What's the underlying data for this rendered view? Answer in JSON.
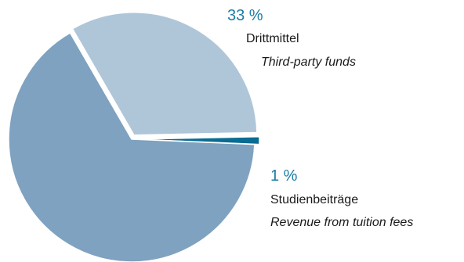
{
  "chart_data": {
    "type": "pie",
    "slices": [
      {
        "value": 33,
        "percent_label": "33 %",
        "label": "Drittmittel",
        "label_en": "Third-party funds",
        "color": "#afc6d9",
        "exploded": true
      },
      {
        "value": 1,
        "percent_label": "1 %",
        "label": "Studienbeiträge",
        "label_en": "Revenue from tuition fees",
        "color": "#0a6c92",
        "exploded": true
      },
      {
        "value": 66,
        "color": "#7ea2c0",
        "exploded": false
      }
    ]
  }
}
